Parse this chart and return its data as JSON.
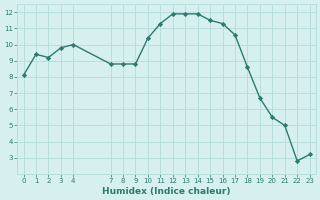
{
  "x_data": [
    0,
    1,
    2,
    3,
    4,
    7,
    8,
    9,
    10,
    11,
    12,
    13,
    14,
    15,
    16,
    17,
    18,
    19,
    20,
    21,
    22,
    23
  ],
  "y_data": [
    8.1,
    9.4,
    9.2,
    9.8,
    10.0,
    8.8,
    8.8,
    8.8,
    10.4,
    11.3,
    11.9,
    11.9,
    11.9,
    11.5,
    11.3,
    10.6,
    8.6,
    6.7,
    5.5,
    5.0,
    2.8,
    3.2
  ],
  "xlabel": "Humidex (Indice chaleur)",
  "line_color": "#2d7a6e",
  "bg_color": "#d6f0f0",
  "grid_color": "#b8dede",
  "tick_label_color": "#2d7a6e",
  "xlabel_color": "#2d7a6e",
  "xlim": [
    -0.5,
    23.5
  ],
  "ylim": [
    2,
    12.5
  ],
  "yticks": [
    3,
    4,
    5,
    6,
    7,
    8,
    9,
    10,
    11,
    12
  ],
  "xticks": [
    0,
    1,
    2,
    3,
    4,
    7,
    8,
    9,
    10,
    11,
    12,
    13,
    14,
    15,
    16,
    17,
    18,
    19,
    20,
    21,
    22,
    23
  ]
}
